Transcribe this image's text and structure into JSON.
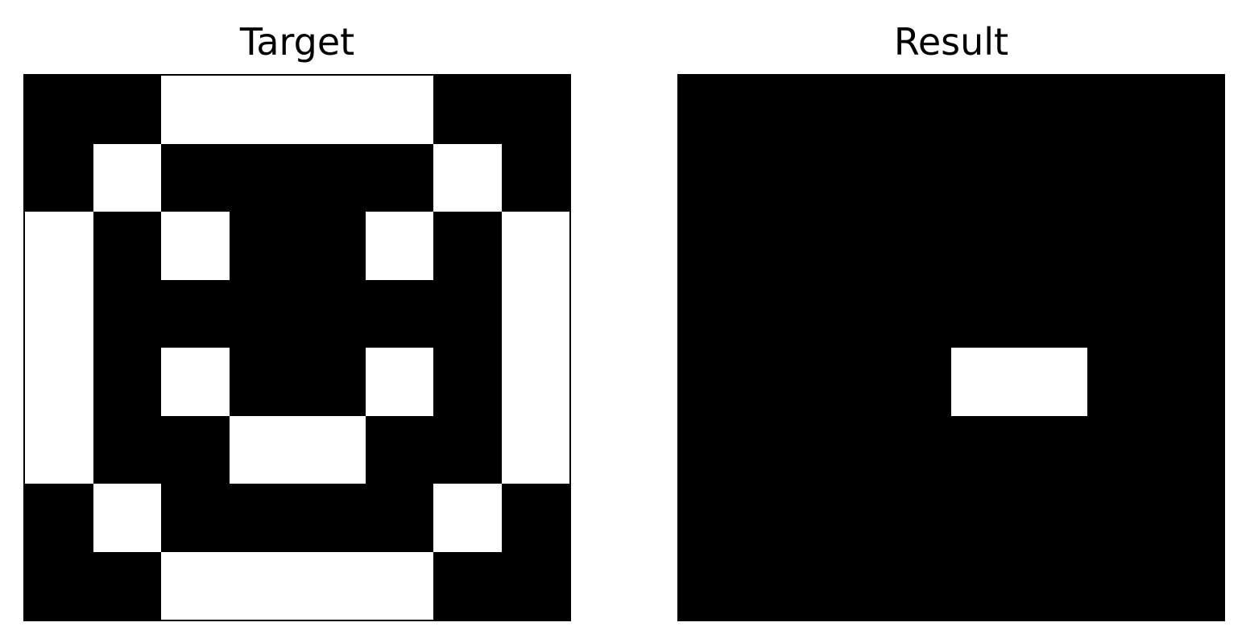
{
  "panels": [
    {
      "title": "Target",
      "grid": [
        [
          1,
          1,
          0,
          0,
          0,
          0,
          1,
          1
        ],
        [
          1,
          0,
          1,
          1,
          1,
          1,
          0,
          1
        ],
        [
          0,
          1,
          0,
          1,
          1,
          0,
          1,
          0
        ],
        [
          0,
          1,
          1,
          1,
          1,
          1,
          1,
          0
        ],
        [
          0,
          1,
          0,
          1,
          1,
          0,
          1,
          0
        ],
        [
          0,
          1,
          1,
          0,
          0,
          1,
          1,
          0
        ],
        [
          1,
          0,
          1,
          1,
          1,
          1,
          0,
          1
        ],
        [
          1,
          1,
          0,
          0,
          0,
          0,
          1,
          1
        ]
      ]
    },
    {
      "title": "Result",
      "grid": [
        [
          1,
          1,
          1,
          1,
          1,
          1,
          1,
          1
        ],
        [
          1,
          1,
          1,
          1,
          1,
          1,
          1,
          1
        ],
        [
          1,
          1,
          1,
          1,
          1,
          1,
          1,
          1
        ],
        [
          1,
          1,
          1,
          1,
          1,
          1,
          1,
          1
        ],
        [
          1,
          1,
          1,
          1,
          0,
          0,
          1,
          1
        ],
        [
          1,
          1,
          1,
          1,
          1,
          1,
          1,
          1
        ],
        [
          1,
          1,
          1,
          1,
          1,
          1,
          1,
          1
        ],
        [
          1,
          1,
          1,
          1,
          1,
          1,
          1,
          1
        ]
      ]
    }
  ],
  "colors": {
    "filled": "#000000",
    "empty": "#ffffff"
  }
}
